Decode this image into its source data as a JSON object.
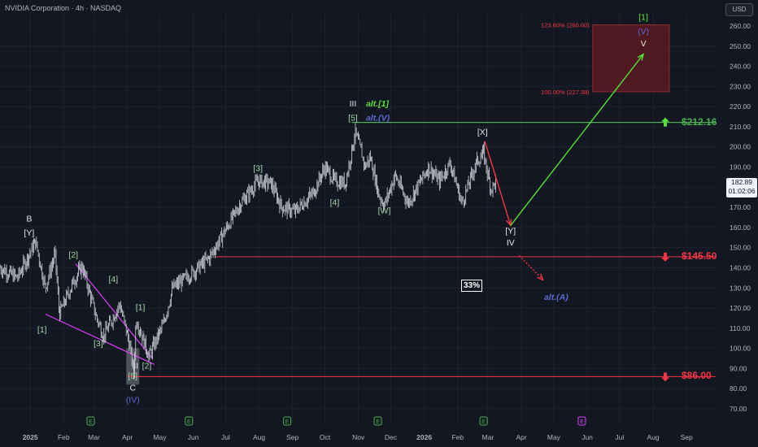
{
  "header": {
    "title": "NVIDIA Corporation · 4h · NASDAQ"
  },
  "currency_button": "USD",
  "last_price": {
    "value": "182.89",
    "countdown": "01:02:06"
  },
  "probability_badge": "33%",
  "levels": [
    {
      "label": "$212.16",
      "price": 212.16,
      "color": "#4caf50",
      "arrow": "up"
    },
    {
      "label": "$145.50",
      "price": 145.5,
      "color": "#f23645",
      "arrow": "down"
    },
    {
      "label": "$86.00",
      "price": 86.0,
      "color": "#f23645",
      "arrow": "down"
    }
  ],
  "fib_box": {
    "top_label": "123.60% (260.60)",
    "bottom_label": "100.00% (227.38)",
    "top": 260.6,
    "bottom": 227.38,
    "start": "2026-06-06",
    "end": "2026-08-16"
  },
  "colors": {
    "background": "#131722",
    "grid": "#1e222d",
    "candle": "#d1d4dc",
    "red": "#f23645",
    "green": "#4caf50",
    "bright_green": "#57e038",
    "blue": "#5b6ad0",
    "magenta": "#e040fb",
    "fib_fill": "#5c1a21"
  },
  "chart_data": {
    "type": "line",
    "title": "NVIDIA Corporation · 4h · NASDAQ",
    "y_ticks": [
      70,
      80,
      90,
      100,
      110,
      120,
      130,
      140,
      150,
      160,
      170,
      180,
      190,
      200,
      210,
      220,
      230,
      240,
      250,
      260
    ],
    "ylim": [
      65,
      265
    ],
    "xlim": [
      "2024-12-04",
      "2026-09-28"
    ],
    "x_ticks": [
      {
        "label": "2025",
        "date": "2025-01-01"
      },
      {
        "label": "Feb",
        "date": "2025-02-01"
      },
      {
        "label": "Mar",
        "date": "2025-03-01"
      },
      {
        "label": "Apr",
        "date": "2025-04-01"
      },
      {
        "label": "May",
        "date": "2025-05-01"
      },
      {
        "label": "Jun",
        "date": "2025-06-01"
      },
      {
        "label": "Jul",
        "date": "2025-07-01"
      },
      {
        "label": "Aug",
        "date": "2025-08-01"
      },
      {
        "label": "Sep",
        "date": "2025-09-01"
      },
      {
        "label": "Oct",
        "date": "2025-10-01"
      },
      {
        "label": "Nov",
        "date": "2025-11-01"
      },
      {
        "label": "Dec",
        "date": "2025-12-01"
      },
      {
        "label": "2026",
        "date": "2026-01-01"
      },
      {
        "label": "Feb",
        "date": "2026-02-01"
      },
      {
        "label": "Mar",
        "date": "2026-03-01"
      },
      {
        "label": "Apr",
        "date": "2026-04-01"
      },
      {
        "label": "May",
        "date": "2026-05-01"
      },
      {
        "label": "Jun",
        "date": "2026-06-01"
      },
      {
        "label": "Jul",
        "date": "2026-07-01"
      },
      {
        "label": "Aug",
        "date": "2026-08-01"
      },
      {
        "label": "Sep",
        "date": "2026-09-01"
      }
    ],
    "price_path": [
      [
        "2024-12-04",
        140
      ],
      [
        "2024-12-20",
        135
      ],
      [
        "2025-01-06",
        153
      ],
      [
        "2025-01-15",
        130
      ],
      [
        "2025-01-24",
        147
      ],
      [
        "2025-01-28",
        117
      ],
      [
        "2025-02-10",
        133
      ],
      [
        "2025-02-18",
        141
      ],
      [
        "2025-03-03",
        116
      ],
      [
        "2025-03-10",
        106
      ],
      [
        "2025-03-25",
        122
      ],
      [
        "2025-04-03",
        102
      ],
      [
        "2025-04-07",
        87
      ],
      [
        "2025-04-09",
        115
      ],
      [
        "2025-04-21",
        96
      ],
      [
        "2025-05-05",
        113
      ],
      [
        "2025-05-13",
        130
      ],
      [
        "2025-05-30",
        137
      ],
      [
        "2025-06-16",
        145
      ],
      [
        "2025-06-30",
        158
      ],
      [
        "2025-07-15",
        172
      ],
      [
        "2025-07-31",
        183
      ],
      [
        "2025-08-12",
        182
      ],
      [
        "2025-08-22",
        170
      ],
      [
        "2025-09-03",
        168
      ],
      [
        "2025-09-20",
        177
      ],
      [
        "2025-10-01",
        190
      ],
      [
        "2025-10-10",
        183
      ],
      [
        "2025-10-20",
        182
      ],
      [
        "2025-10-29",
        207
      ],
      [
        "2025-11-04",
        197
      ],
      [
        "2025-11-07",
        190
      ],
      [
        "2025-11-12",
        195
      ],
      [
        "2025-11-20",
        176
      ],
      [
        "2025-11-25",
        171
      ],
      [
        "2025-12-05",
        186
      ],
      [
        "2025-12-17",
        172
      ],
      [
        "2026-01-05",
        190
      ],
      [
        "2026-01-15",
        183
      ],
      [
        "2026-01-25",
        192
      ],
      [
        "2026-02-05",
        172
      ],
      [
        "2026-02-18",
        192
      ],
      [
        "2026-02-25",
        197
      ],
      [
        "2026-03-01",
        186
      ],
      [
        "2026-03-04",
        179
      ],
      [
        "2026-03-09",
        183
      ]
    ],
    "projections": [
      {
        "name": "",
        "color": "#f23645",
        "style": "solid",
        "points": [
          [
            "2026-02-26",
            203
          ],
          [
            "2026-03-22",
            161
          ]
        ]
      },
      {
        "name": "",
        "color": "#57e038",
        "style": "solid",
        "points": [
          [
            "2026-03-22",
            161
          ],
          [
            "2026-07-23",
            246
          ]
        ]
      },
      {
        "name": "",
        "color": "#f23645",
        "style": "dotted",
        "points": [
          [
            "2026-03-30",
            146
          ],
          [
            "2026-04-21",
            134
          ]
        ]
      }
    ],
    "wedge": [
      {
        "color": "#e040fb",
        "points": [
          [
            "2025-01-15",
            117
          ],
          [
            "2025-04-26",
            92
          ]
        ]
      },
      {
        "color": "#e040fb",
        "points": [
          [
            "2025-02-12",
            142
          ],
          [
            "2025-04-24",
            95
          ]
        ]
      }
    ],
    "highlight_box": {
      "start": "2025-03-31",
      "end": "2025-04-12",
      "low": 82,
      "high": 100
    },
    "annotations": [
      {
        "text": "B",
        "date": "2024-12-31",
        "price": 163,
        "color": "#e8e8e8"
      },
      {
        "text": "[Y]",
        "date": "2024-12-31",
        "price": 156,
        "color": "#e8e8e8"
      },
      {
        "text": "[1]",
        "date": "2025-01-12",
        "price": 108,
        "color": "#a5d6a7"
      },
      {
        "text": "[2]",
        "date": "2025-02-10",
        "price": 145,
        "color": "#a5d6a7"
      },
      {
        "text": "[3]",
        "date": "2025-03-05",
        "price": 101,
        "color": "#a5d6a7"
      },
      {
        "text": "[4]",
        "date": "2025-03-19",
        "price": 133,
        "color": "#a5d6a7"
      },
      {
        "text": "[1]",
        "date": "2025-04-13",
        "price": 119,
        "color": "#a5d6a7"
      },
      {
        "text": "[2]",
        "date": "2025-04-19",
        "price": 90,
        "color": "#a5d6a7"
      },
      {
        "text": "II",
        "date": "2025-04-09",
        "price": 90,
        "color": "#e8e8e8"
      },
      {
        "text": "[5]",
        "date": "2025-04-06",
        "price": 85,
        "color": "#a5d6a7"
      },
      {
        "text": "C",
        "date": "2025-04-06",
        "price": 79,
        "color": "#e8e8e8"
      },
      {
        "text": "(IV)",
        "date": "2025-04-06",
        "price": 73,
        "color": "#5b6ad0"
      },
      {
        "text": "[3]",
        "date": "2025-07-31",
        "price": 188,
        "color": "#a5d6a7"
      },
      {
        "text": "[4]",
        "date": "2025-10-10",
        "price": 171,
        "color": "#a5d6a7"
      },
      {
        "text": "III",
        "date": "2025-10-27",
        "price": 220,
        "color": "#e8e8e8"
      },
      {
        "text": "alt.[1]",
        "date": "2025-11-08",
        "price": 220,
        "color": "#57e038"
      },
      {
        "text": "[5]",
        "date": "2025-10-27",
        "price": 213,
        "color": "#a5d6a7"
      },
      {
        "text": "alt.(V)",
        "date": "2025-11-08",
        "price": 213,
        "color": "#5b6ad0"
      },
      {
        "text": "[W]",
        "date": "2025-11-25",
        "price": 167,
        "color": "#a5d6a7"
      },
      {
        "text": "[X]",
        "date": "2026-02-24",
        "price": 206,
        "color": "#e8e8e8"
      },
      {
        "text": "[Y]",
        "date": "2026-03-22",
        "price": 157,
        "color": "#e8e8e8"
      },
      {
        "text": "IV",
        "date": "2026-03-22",
        "price": 151,
        "color": "#e8e8e8"
      },
      {
        "text": "alt.(A)",
        "date": "2026-04-22",
        "price": 124,
        "color": "#5b6ad0"
      },
      {
        "text": "[1]",
        "date": "2026-07-23",
        "price": 263,
        "color": "#57e038"
      },
      {
        "text": "(V)",
        "date": "2026-07-23",
        "price": 256,
        "color": "#5b6ad0"
      },
      {
        "text": "V",
        "date": "2026-07-23",
        "price": 250,
        "color": "#e8e8e8"
      }
    ],
    "earnings_markers": [
      {
        "text": "E",
        "date": "2025-02-26",
        "color": "#4caf50"
      },
      {
        "text": "E",
        "date": "2025-05-28",
        "color": "#4caf50"
      },
      {
        "text": "E",
        "date": "2025-08-27",
        "color": "#4caf50"
      },
      {
        "text": "E",
        "date": "2025-11-19",
        "color": "#4caf50"
      },
      {
        "text": "E",
        "date": "2026-02-25",
        "color": "#4caf50"
      },
      {
        "text": "E",
        "date": "2026-05-27",
        "color": "#e040fb"
      }
    ]
  }
}
